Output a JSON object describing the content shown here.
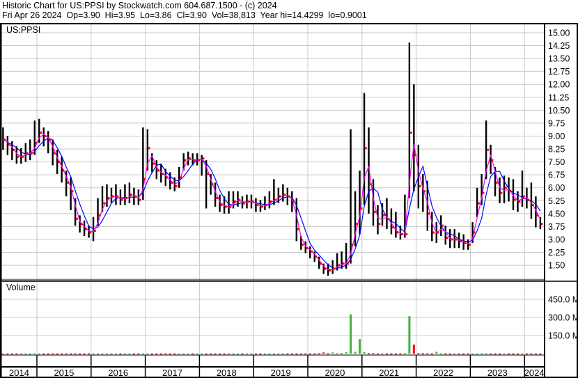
{
  "header": {
    "title": "Historic Chart for US:PPSI by Stockwatch.com 604.687.1500 - (c) 2024",
    "quote": "Fri Apr 26 2024  Op=3.90  Hi=3.95  Lo=3.86  Cl=3.90  Vol=38,813  Year hi=14.4299  lo=0.9001"
  },
  "chart_data": [
    {
      "type": "candlestick",
      "symbol_label": "US:PPSI",
      "period": "monthly approximation",
      "start_month": "2014-05",
      "ylim": [
        0.75,
        15.6
      ],
      "y_ticks": [
        "15.00",
        "14.25",
        "13.50",
        "12.75",
        "12.00",
        "11.25",
        "10.50",
        "9.75",
        "9.00",
        "8.25",
        "7.50",
        "6.75",
        "6.00",
        "5.25",
        "4.50",
        "3.75",
        "3.00",
        "2.25",
        "1.50"
      ],
      "x_ticks": [
        "2014",
        "2015",
        "2016",
        "2017",
        "2018",
        "2019",
        "2020",
        "2021",
        "2022",
        "2023",
        "2024"
      ],
      "grid": true,
      "colors": {
        "bars": "#000000",
        "close": "#ff0000",
        "ma_short": "#ff00ff",
        "ma_long": "#0000ff",
        "grid": "#c8c8c8"
      },
      "close": [
        8.8,
        8.5,
        8.2,
        7.8,
        7.8,
        8.0,
        8.0,
        8.6,
        9.2,
        9.0,
        8.8,
        8.0,
        7.5,
        7.0,
        6.3,
        5.8,
        4.2,
        3.9,
        3.6,
        3.4,
        3.5,
        4.4,
        5.1,
        5.4,
        5.5,
        5.5,
        5.3,
        5.4,
        5.6,
        5.5,
        5.3,
        6.5,
        8.3,
        7.4,
        7.0,
        6.8,
        6.6,
        6.3,
        6.1,
        6.6,
        7.6,
        7.7,
        7.6,
        7.6,
        7.7,
        6.8,
        6.2,
        5.4,
        5.0,
        4.9,
        4.9,
        5.2,
        5.3,
        5.1,
        5.2,
        5.2,
        5.0,
        4.9,
        5.0,
        5.2,
        5.3,
        5.5,
        5.6,
        5.5,
        5.2,
        3.6,
        2.7,
        2.5,
        2.3,
        2.0,
        1.6,
        1.3,
        1.2,
        1.3,
        1.5,
        1.6,
        1.6,
        2.7,
        3.9,
        4.8,
        8.3,
        6.2,
        4.6,
        3.9,
        4.4,
        4.2,
        3.7,
        3.4,
        3.3,
        3.3,
        9.2,
        7.9,
        6.1,
        5.8,
        4.5,
        3.4,
        3.4,
        3.8,
        3.1,
        3.0,
        3.0,
        2.9,
        2.8,
        2.7,
        3.4,
        5.1,
        5.7,
        8.2,
        7.6,
        6.3,
        5.7,
        6.0,
        5.8,
        5.3,
        5.2,
        5.5,
        5.3,
        5.0,
        4.4,
        3.9
      ],
      "high": [
        9.5,
        9.0,
        8.7,
        8.4,
        8.3,
        8.6,
        8.8,
        9.9,
        10.0,
        9.5,
        9.3,
        8.8,
        8.2,
        7.8,
        7.0,
        6.6,
        5.4,
        4.4,
        4.1,
        3.8,
        4.3,
        5.4,
        6.1,
        6.2,
        6.0,
        6.2,
        5.9,
        6.2,
        6.3,
        6.0,
        5.9,
        9.5,
        9.4,
        8.0,
        7.6,
        7.4,
        7.1,
        6.9,
        6.6,
        7.2,
        8.0,
        8.1,
        8.0,
        8.0,
        7.9,
        7.6,
        6.8,
        6.3,
        5.6,
        5.5,
        5.8,
        5.8,
        5.8,
        5.5,
        5.6,
        5.6,
        5.4,
        5.3,
        5.5,
        5.8,
        6.5,
        6.0,
        6.2,
        6.0,
        5.8,
        5.4,
        3.2,
        2.9,
        2.6,
        2.3,
        2.0,
        1.6,
        1.6,
        1.8,
        2.2,
        2.3,
        2.8,
        9.4,
        5.8,
        7.0,
        11.5,
        9.5,
        6.5,
        5.0,
        5.1,
        5.4,
        4.8,
        4.6,
        3.8,
        5.6,
        14.43,
        12.0,
        8.5,
        6.8,
        6.4,
        4.6,
        4.0,
        4.4,
        3.8,
        3.6,
        3.6,
        3.4,
        3.3,
        3.0,
        4.0,
        6.0,
        6.8,
        9.9,
        8.5,
        7.2,
        6.6,
        6.7,
        6.6,
        6.5,
        5.8,
        7.0,
        6.0,
        6.3,
        5.5,
        4.3
      ],
      "low": [
        8.2,
        7.9,
        7.6,
        7.4,
        7.4,
        7.5,
        7.6,
        7.9,
        8.6,
        8.4,
        8.0,
        7.3,
        6.8,
        6.3,
        5.5,
        4.7,
        3.8,
        3.4,
        3.2,
        3.1,
        2.9,
        3.8,
        4.6,
        4.9,
        5.1,
        5.0,
        5.0,
        5.0,
        5.1,
        5.0,
        5.0,
        5.3,
        7.0,
        6.9,
        6.5,
        6.3,
        6.1,
        5.9,
        5.8,
        6.0,
        7.0,
        7.3,
        7.3,
        7.3,
        6.7,
        4.8,
        5.6,
        4.9,
        4.6,
        4.5,
        4.5,
        4.8,
        4.9,
        4.8,
        4.8,
        4.8,
        4.6,
        4.6,
        4.7,
        4.8,
        5.0,
        5.1,
        5.2,
        5.0,
        4.6,
        2.9,
        2.4,
        2.2,
        1.9,
        1.7,
        1.3,
        1.0,
        0.9,
        1.0,
        1.2,
        1.3,
        1.3,
        1.6,
        2.6,
        3.3,
        5.0,
        4.5,
        3.8,
        3.3,
        3.8,
        3.6,
        3.3,
        3.1,
        3.0,
        3.1,
        5.4,
        5.8,
        4.8,
        4.6,
        3.5,
        2.9,
        2.8,
        3.2,
        2.7,
        2.5,
        2.5,
        2.5,
        2.4,
        2.4,
        2.8,
        4.3,
        5.0,
        6.5,
        6.8,
        5.5,
        5.1,
        5.1,
        5.2,
        4.7,
        4.6,
        4.9,
        4.8,
        4.2,
        3.7,
        3.6
      ]
    },
    {
      "type": "bar",
      "label": "Volume",
      "unit": "M",
      "ylim": [
        0,
        500
      ],
      "y_ticks": [
        "450.0 M",
        "300.0 M",
        "150.0 M"
      ],
      "colors": {
        "up": "#40b040",
        "down": "#ff0000"
      },
      "values": [
        2,
        2,
        2,
        2,
        2,
        2,
        2,
        2,
        2,
        2,
        2,
        2,
        2,
        2,
        2,
        2,
        2,
        2,
        2,
        2,
        2,
        2,
        2,
        2,
        2,
        2,
        2,
        2,
        2,
        2,
        2,
        2,
        2,
        2,
        2,
        2,
        2,
        2,
        2,
        2,
        2,
        2,
        2,
        2,
        2,
        2,
        2,
        2,
        2,
        2,
        2,
        2,
        2,
        2,
        2,
        2,
        2,
        2,
        2,
        2,
        2,
        2,
        2,
        2,
        2,
        2,
        2,
        2,
        2,
        2,
        3,
        10,
        3,
        10,
        4,
        4,
        12,
        325,
        15,
        120,
        12,
        4,
        3,
        2,
        2,
        2,
        2,
        2,
        2,
        3,
        310,
        75,
        4,
        3,
        3,
        2,
        15,
        3,
        2,
        2,
        2,
        2,
        2,
        2,
        2,
        2,
        2,
        3,
        2,
        2,
        2,
        2,
        2,
        2,
        2,
        2,
        2,
        2,
        2,
        2
      ]
    }
  ]
}
